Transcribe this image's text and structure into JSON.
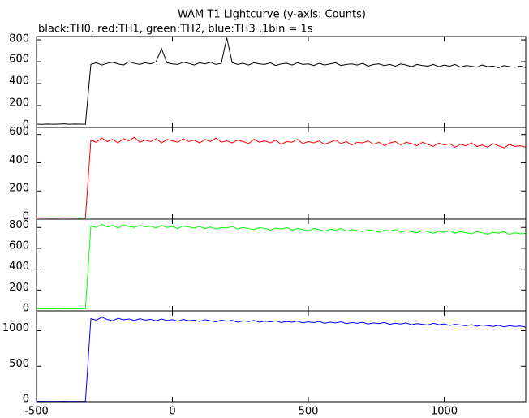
{
  "chart_data": [
    {
      "type": "line",
      "title": "WAM T1 Lightcurve (y-axis: Counts)",
      "subtitle": "black:TH0, red:TH1, green:TH2, blue:TH3 ,1bin = 1s",
      "x": [
        -500,
        -480,
        -460,
        -440,
        -420,
        -400,
        -380,
        -360,
        -340,
        -320,
        -300,
        -280,
        -260,
        -240,
        -220,
        -200,
        -180,
        -160,
        -140,
        -120,
        -100,
        -80,
        -60,
        -40,
        -20,
        0,
        20,
        40,
        60,
        80,
        100,
        120,
        140,
        160,
        180,
        200,
        220,
        240,
        260,
        280,
        300,
        320,
        340,
        360,
        380,
        400,
        420,
        440,
        460,
        480,
        500,
        520,
        540,
        560,
        580,
        600,
        620,
        640,
        660,
        680,
        700,
        720,
        740,
        760,
        780,
        800,
        820,
        840,
        860,
        880,
        900,
        920,
        940,
        960,
        980,
        1000,
        1020,
        1040,
        1060,
        1080,
        1100,
        1120,
        1140,
        1160,
        1180,
        1200,
        1220,
        1240,
        1260,
        1280,
        1300
      ],
      "xlim": [
        -500,
        1300
      ],
      "xticks": [
        -500,
        0,
        500,
        1000
      ],
      "color": "#000000",
      "ylim": [
        0,
        830
      ],
      "yticks": [
        0,
        200,
        400,
        600,
        800
      ],
      "values": [
        30,
        28,
        31,
        29,
        30,
        32,
        29,
        31,
        30,
        29,
        575,
        590,
        570,
        585,
        595,
        580,
        570,
        600,
        585,
        575,
        590,
        580,
        600,
        720,
        590,
        580,
        575,
        595,
        585,
        570,
        590,
        580,
        595,
        575,
        585,
        820,
        590,
        575,
        585,
        570,
        590,
        580,
        575,
        590,
        565,
        580,
        585,
        570,
        590,
        575,
        580,
        565,
        585,
        570,
        580,
        590,
        565,
        575,
        580,
        570,
        585,
        560,
        575,
        580,
        565,
        575,
        560,
        580,
        570,
        555,
        575,
        565,
        560,
        575,
        555,
        570,
        560,
        575,
        550,
        565,
        560,
        550,
        570,
        555,
        560,
        545,
        565,
        555,
        550,
        560,
        545
      ]
    },
    {
      "type": "line",
      "color": "#ff0000",
      "ylim": [
        0,
        650
      ],
      "yticks": [
        0,
        200,
        400,
        600
      ],
      "values": [
        8,
        9,
        8,
        7,
        8,
        9,
        8,
        8,
        7,
        8,
        560,
        545,
        575,
        550,
        565,
        540,
        570,
        555,
        580,
        545,
        560,
        550,
        570,
        540,
        565,
        555,
        545,
        570,
        550,
        560,
        540,
        565,
        550,
        575,
        545,
        555,
        540,
        560,
        550,
        535,
        565,
        545,
        555,
        540,
        560,
        530,
        550,
        545,
        565,
        535,
        550,
        540,
        555,
        530,
        545,
        560,
        535,
        550,
        525,
        545,
        540,
        555,
        530,
        545,
        520,
        540,
        550,
        525,
        545,
        535,
        520,
        545,
        530,
        515,
        540,
        525,
        535,
        510,
        530,
        520,
        540,
        515,
        525,
        510,
        535,
        520,
        505,
        530,
        515,
        520,
        510
      ]
    },
    {
      "type": "line",
      "color": "#00ff00",
      "ylim": [
        0,
        880
      ],
      "yticks": [
        0,
        200,
        400,
        600,
        800
      ],
      "values": [
        20,
        21,
        19,
        20,
        22,
        20,
        19,
        21,
        20,
        20,
        815,
        800,
        830,
        805,
        820,
        795,
        825,
        810,
        800,
        820,
        805,
        815,
        795,
        820,
        800,
        810,
        790,
        815,
        805,
        795,
        810,
        790,
        805,
        785,
        800,
        795,
        810,
        785,
        800,
        790,
        780,
        800,
        790,
        775,
        795,
        785,
        800,
        775,
        790,
        780,
        770,
        790,
        780,
        765,
        785,
        775,
        790,
        765,
        780,
        770,
        760,
        780,
        770,
        755,
        775,
        765,
        780,
        755,
        770,
        760,
        750,
        770,
        760,
        745,
        765,
        755,
        770,
        745,
        760,
        750,
        740,
        760,
        750,
        735,
        755,
        745,
        760,
        735,
        750,
        740,
        745
      ]
    },
    {
      "type": "line",
      "color": "#0000ff",
      "ylim": [
        0,
        1280
      ],
      "yticks": [
        0,
        500,
        1000
      ],
      "values": [
        5,
        6,
        5,
        4,
        5,
        6,
        5,
        5,
        4,
        5,
        1170,
        1150,
        1190,
        1160,
        1140,
        1175,
        1155,
        1165,
        1145,
        1170,
        1150,
        1160,
        1140,
        1165,
        1145,
        1155,
        1135,
        1160,
        1140,
        1150,
        1130,
        1155,
        1140,
        1125,
        1150,
        1135,
        1145,
        1120,
        1140,
        1130,
        1145,
        1120,
        1135,
        1125,
        1140,
        1115,
        1130,
        1120,
        1135,
        1110,
        1125,
        1115,
        1130,
        1105,
        1120,
        1110,
        1125,
        1100,
        1115,
        1105,
        1120,
        1095,
        1110,
        1100,
        1115,
        1090,
        1105,
        1095,
        1110,
        1085,
        1100,
        1090,
        1080,
        1105,
        1085,
        1095,
        1075,
        1090,
        1080,
        1070,
        1085,
        1065,
        1080,
        1070,
        1060,
        1075,
        1055,
        1070,
        1060,
        1065,
        1050
      ]
    }
  ]
}
